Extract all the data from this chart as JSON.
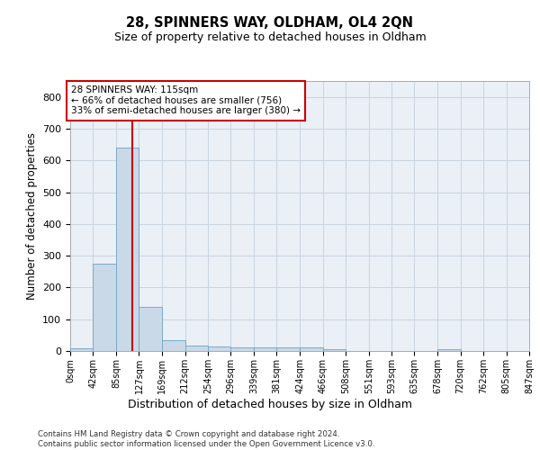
{
  "title1": "28, SPINNERS WAY, OLDHAM, OL4 2QN",
  "title2": "Size of property relative to detached houses in Oldham",
  "xlabel": "Distribution of detached houses by size in Oldham",
  "ylabel": "Number of detached properties",
  "footer": "Contains HM Land Registry data © Crown copyright and database right 2024.\nContains public sector information licensed under the Open Government Licence v3.0.",
  "bar_color": "#c9d9e8",
  "bar_edge_color": "#7aaac8",
  "grid_color": "#c8d4e0",
  "background_color": "#eaf0f6",
  "annotation_box_color": "#cc0000",
  "vline_color": "#cc0000",
  "vline_x": 115,
  "annotation_text": "28 SPINNERS WAY: 115sqm\n← 66% of detached houses are smaller (756)\n33% of semi-detached houses are larger (380) →",
  "bin_edges": [
    0,
    42,
    85,
    127,
    169,
    212,
    254,
    296,
    339,
    381,
    424,
    466,
    508,
    551,
    593,
    635,
    678,
    720,
    762,
    805,
    847
  ],
  "counts": [
    8,
    275,
    641,
    138,
    35,
    18,
    13,
    10,
    10,
    10,
    10,
    5,
    0,
    0,
    0,
    0,
    7,
    0,
    0,
    0
  ],
  "ylim": [
    0,
    850
  ],
  "yticks": [
    0,
    100,
    200,
    300,
    400,
    500,
    600,
    700,
    800
  ],
  "tick_labels": [
    "0sqm",
    "42sqm",
    "85sqm",
    "127sqm",
    "169sqm",
    "212sqm",
    "254sqm",
    "296sqm",
    "339sqm",
    "381sqm",
    "424sqm",
    "466sqm",
    "508sqm",
    "551sqm",
    "593sqm",
    "635sqm",
    "678sqm",
    "720sqm",
    "762sqm",
    "805sqm",
    "847sqm"
  ]
}
